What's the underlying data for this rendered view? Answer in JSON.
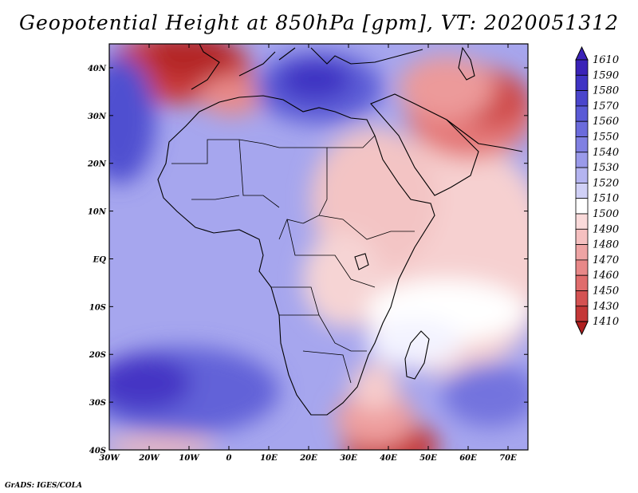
{
  "title": "Geopotential Height at 850hPa [gpm], VT: 2020051312",
  "footer": "GrADS: IGES/COLA",
  "map": {
    "lat_labels": [
      "40N",
      "30N",
      "20N",
      "10N",
      "EQ",
      "10S",
      "20S",
      "30S",
      "40S"
    ],
    "lon_labels": [
      "30W",
      "20W",
      "10W",
      "0",
      "10E",
      "20E",
      "30E",
      "40E",
      "50E",
      "60E",
      "70E"
    ]
  },
  "colorbar": {
    "levels": [
      "1610",
      "1590",
      "1580",
      "1570",
      "1560",
      "1550",
      "1540",
      "1530",
      "1520",
      "1510",
      "1500",
      "1490",
      "1480",
      "1470",
      "1460",
      "1450",
      "1430",
      "1410"
    ],
    "colors": [
      "#3a22b8",
      "#3f33c4",
      "#4a45cc",
      "#5a5ad6",
      "#6b6bdc",
      "#8080e2",
      "#9a9aea",
      "#b4b4f0",
      "#d0d0f6",
      "#ffffff",
      "#fadada",
      "#f5c0c0",
      "#eea4a4",
      "#e88888",
      "#e06c6c",
      "#d45252",
      "#c43838",
      "#b02020"
    ]
  },
  "palette": {
    "land_outline": "#000000",
    "frame": "#000000"
  }
}
